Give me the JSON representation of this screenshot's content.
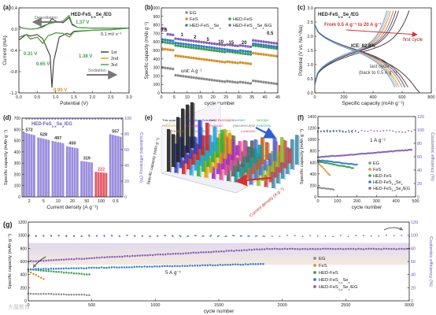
{
  "colors": {
    "EG": "#8c8c8c",
    "FeS": "#d9922b",
    "HED-FeS": "#3aa04a",
    "HED-FeS1-xSex": "#2f7fd0",
    "HED-FeS1-xSex/EG": "#8a5fb8",
    "cycle1": "#3a3a3a",
    "cycle2": "#e0a000",
    "cycle3": "#3aa04a"
  },
  "chart_data": [
    {
      "id": "a",
      "panel": "(a)",
      "type": "line",
      "xlabel": "Potential (V)",
      "ylabel": "Current (mA)",
      "xlim": [
        0,
        3
      ],
      "ylim": [
        -1.2,
        0.4
      ],
      "xticks": [
        0.0,
        0.5,
        1.0,
        1.5,
        2.0,
        2.5,
        3.0
      ],
      "yticks": [
        -1.2,
        -0.8,
        -0.4,
        0.0,
        0.4
      ],
      "legend_title": "HED-FeS1-xSex/EG",
      "annotations": [
        {
          "text": "Desodiation"
        },
        {
          "text": "Sodiation"
        },
        {
          "text": "0.1 mV s⁻¹"
        },
        {
          "text": "1.37 V"
        },
        {
          "text": "0.31 V"
        },
        {
          "text": "0.65 V"
        },
        {
          "text": "1.38 V"
        },
        {
          "text": "0.90 V"
        }
      ],
      "series": [
        {
          "name": "1st",
          "x": [
            0.01,
            0.1,
            0.3,
            0.5,
            0.65,
            0.8,
            0.9,
            1.0,
            1.2,
            1.37,
            1.45,
            1.6,
            2.0,
            2.5,
            3.0,
            2.5,
            2.0,
            1.5,
            1.4,
            1.3,
            1.1,
            0.95,
            0.9,
            0.85,
            0.65,
            0.5,
            0.31,
            0.2,
            0.01
          ],
          "y": [
            0.05,
            0.02,
            0.0,
            0.01,
            0.04,
            0.1,
            0.2,
            0.15,
            0.12,
            0.22,
            0.08,
            0.03,
            0.02,
            0.02,
            0.02,
            -0.01,
            -0.02,
            -0.04,
            -0.1,
            -0.08,
            -0.15,
            -0.6,
            -1.1,
            -0.5,
            -0.18,
            -0.1,
            -0.13,
            -0.1,
            -0.2
          ]
        },
        {
          "name": "2nd",
          "x": [
            0.01,
            0.1,
            0.3,
            0.5,
            0.65,
            0.8,
            1.0,
            1.2,
            1.37,
            1.45,
            1.6,
            2.0,
            2.5,
            3.0,
            2.5,
            2.0,
            1.5,
            1.38,
            1.2,
            1.0,
            0.9,
            0.8,
            0.65,
            0.5,
            0.31,
            0.2,
            0.01
          ],
          "y": [
            0.04,
            0.02,
            0.0,
            0.01,
            0.06,
            0.1,
            0.13,
            0.15,
            0.25,
            0.1,
            0.03,
            0.02,
            0.02,
            0.02,
            -0.01,
            -0.02,
            -0.05,
            -0.14,
            -0.08,
            -0.07,
            -0.1,
            -0.12,
            -0.26,
            -0.15,
            -0.18,
            -0.1,
            -0.15
          ]
        },
        {
          "name": "3rd",
          "x": [
            0.01,
            0.1,
            0.3,
            0.5,
            0.65,
            0.8,
            1.0,
            1.2,
            1.37,
            1.45,
            1.6,
            2.0,
            2.5,
            3.0,
            2.5,
            2.0,
            1.5,
            1.38,
            1.2,
            1.0,
            0.9,
            0.8,
            0.65,
            0.5,
            0.31,
            0.2,
            0.01
          ],
          "y": [
            0.04,
            0.02,
            0.0,
            0.01,
            0.06,
            0.1,
            0.13,
            0.15,
            0.26,
            0.1,
            0.03,
            0.02,
            0.02,
            0.02,
            -0.01,
            -0.02,
            -0.05,
            -0.15,
            -0.08,
            -0.07,
            -0.1,
            -0.12,
            -0.27,
            -0.15,
            -0.19,
            -0.1,
            -0.15
          ]
        }
      ]
    },
    {
      "id": "b",
      "panel": "(b)",
      "type": "scatter",
      "xlabel": "cycle number",
      "ylabel": "Specific capacity (mAh g⁻¹)",
      "xlim": [
        0,
        45
      ],
      "ylim": [
        0,
        1000
      ],
      "xticks": [
        0,
        5,
        10,
        15,
        20,
        25,
        30,
        35,
        40,
        45
      ],
      "yticks": [
        0,
        100,
        200,
        300,
        400,
        500,
        600,
        700,
        800,
        900,
        1000
      ],
      "unit_label": "unit: A g⁻¹",
      "rate_labels": [
        {
          "text": "0.5",
          "x": 1
        },
        {
          "text": "1",
          "x": 8
        },
        {
          "text": "2",
          "x": 13
        },
        {
          "text": "5",
          "x": 18
        },
        {
          "text": "10",
          "x": 23
        },
        {
          "text": "15",
          "x": 27
        },
        {
          "text": "20",
          "x": 32
        },
        {
          "text": "0.5",
          "x": 42
        }
      ],
      "series": [
        {
          "name": "EG",
          "levels": [
            [
              0,
              5,
              300
            ],
            [
              5,
              10,
              210
            ],
            [
              10,
              15,
              190
            ],
            [
              15,
              20,
              170
            ],
            [
              20,
              25,
              150
            ],
            [
              25,
              30,
              140
            ],
            [
              30,
              35,
              130
            ],
            [
              35,
              45,
              145
            ]
          ]
        },
        {
          "name": "FeS",
          "levels": [
            [
              0,
              5,
              520
            ],
            [
              5,
              10,
              440
            ],
            [
              10,
              15,
              420
            ],
            [
              15,
              20,
              400
            ],
            [
              20,
              25,
              380
            ],
            [
              25,
              30,
              370
            ],
            [
              30,
              35,
              360
            ],
            [
              35,
              45,
              470
            ]
          ]
        },
        {
          "name": "HED-FeS",
          "levels": [
            [
              0,
              5,
              600
            ],
            [
              5,
              10,
              560
            ],
            [
              10,
              15,
              540
            ],
            [
              15,
              20,
              520
            ],
            [
              20,
              25,
              500
            ],
            [
              25,
              30,
              490
            ],
            [
              30,
              35,
              470
            ],
            [
              35,
              45,
              560
            ]
          ]
        },
        {
          "name": "HED-FeS1-xSex",
          "levels": [
            [
              0,
              5,
              630
            ],
            [
              5,
              10,
              590
            ],
            [
              10,
              15,
              570
            ],
            [
              15,
              20,
              550
            ],
            [
              20,
              25,
              530
            ],
            [
              25,
              30,
              510
            ],
            [
              30,
              35,
              500
            ],
            [
              35,
              45,
              580
            ]
          ]
        },
        {
          "name": "HED-FeS1-xSex/EG",
          "levels": [
            [
              0,
              5,
              700
            ],
            [
              5,
              10,
              640
            ],
            [
              10,
              15,
              620
            ],
            [
              15,
              20,
              600
            ],
            [
              20,
              25,
              580
            ],
            [
              25,
              30,
              570
            ],
            [
              30,
              35,
              560
            ],
            [
              35,
              45,
              620
            ]
          ]
        }
      ]
    },
    {
      "id": "c",
      "panel": "(c)",
      "type": "line",
      "xlabel": "Specific capacity (mAh g⁻¹)",
      "ylabel": "Potential (V vs. Na⁺/Na)",
      "xlim": [
        0,
        800
      ],
      "ylim": [
        0,
        3.0
      ],
      "xticks": [
        0,
        200,
        400,
        600,
        800
      ],
      "yticks": [
        0.0,
        0.5,
        1.0,
        1.5,
        2.0,
        2.5,
        3.0
      ],
      "legend_title": "HED-FeS1-xSex/EG",
      "annotations": [
        {
          "text": "From 0.5 A g⁻¹ to 20 A g⁻¹"
        },
        {
          "text": "ICE: 82.8%"
        },
        {
          "text": "first cycle"
        },
        {
          "text": "last cycle"
        },
        {
          "text": "(back to 0.5 A g⁻¹)"
        }
      ],
      "curve_capacities": [
        720,
        640,
        620,
        600,
        580,
        570,
        560,
        550,
        620
      ]
    },
    {
      "id": "d",
      "panel": "(d)",
      "type": "bar",
      "xlabel": "Current density (A g⁻¹)",
      "ylabel": "Specific capacity (mAh g⁻¹)",
      "y2label": "Coulombic efficiency (%)",
      "ylim": [
        0,
        700
      ],
      "y2lim": [
        0,
        100
      ],
      "yticks": [
        0,
        100,
        200,
        300,
        400,
        500,
        600,
        700
      ],
      "y2ticks": [
        0,
        20,
        40,
        60,
        80,
        100
      ],
      "legend_title": "HED-FeS1-xSex/EG",
      "categories": [
        "2",
        "5",
        "10",
        "20",
        "50",
        "100",
        "0.5"
      ],
      "values": [
        572,
        528,
        497,
        450,
        319,
        222,
        557
      ],
      "bar_colors": [
        "#8a7ad8",
        "#8a7ad8",
        "#8a7ad8",
        "#8a7ad8",
        "#8a7ad8",
        "#e04050",
        "#8a7ad8"
      ]
    },
    {
      "id": "e",
      "panel": "(e)",
      "type": "bar",
      "xlabel": "Current density (A g⁻¹)",
      "ylabel": "Specific capacity (mAh g⁻¹)",
      "labels": [
        "This work",
        "Sn(Sodium/Selenium cell)-PAN@CNRC/N",
        "FeS2-Fe2O3@HC",
        "Co9S8/C",
        "SiO2@C",
        "FeS2/rGO",
        "FeSe2@C",
        "Fe3Se4/C",
        "(Sn0.5Fe0.5)S2",
        "FeS/CNTs",
        "FeS@NCS",
        "FeSe2/N-C",
        "NiS2@NC",
        "CoSe2/NC",
        "NbS2"
      ]
    },
    {
      "id": "f",
      "panel": "(f)",
      "type": "scatter",
      "xlabel": "cycle number",
      "ylabel": "Specific capacity (mAh g⁻¹)",
      "y2label": "Coulombic efficiency (%)",
      "xlim": [
        0,
        500
      ],
      "ylim": [
        0,
        1400
      ],
      "y2lim": [
        0,
        120
      ],
      "xticks": [
        0,
        100,
        200,
        300,
        400,
        500
      ],
      "yticks": [
        0,
        200,
        400,
        600,
        800,
        1000,
        1200,
        1400
      ],
      "y2ticks": [
        0,
        20,
        40,
        60,
        80,
        100,
        120
      ],
      "annotations": [
        {
          "text": "1 A g⁻¹"
        }
      ],
      "series": [
        {
          "name": "EG",
          "end": 80,
          "start_cap": 160,
          "end_cap": 130
        },
        {
          "name": "FeS",
          "end": 60,
          "start_cap": 600,
          "end_cap": 380
        },
        {
          "name": "HED-FeS",
          "end": 180,
          "start_cap": 620,
          "end_cap": 500
        },
        {
          "name": "HED-FeS1-xSex",
          "end": 200,
          "start_cap": 640,
          "end_cap": 560
        },
        {
          "name": "HED-FeS1-xSex/EG",
          "end": 480,
          "start_cap": 690,
          "end_cap": 820
        }
      ]
    },
    {
      "id": "g",
      "panel": "(g)",
      "type": "scatter",
      "xlabel": "cycle number",
      "ylabel": "Specific capacity (mAh g⁻¹)",
      "y2label": "Coulombic efficiency (%)",
      "xlim": [
        0,
        3000
      ],
      "ylim": [
        0,
        1200
      ],
      "y2lim": [
        0,
        120
      ],
      "xticks": [
        0,
        500,
        1000,
        1500,
        2000,
        2500,
        3000
      ],
      "yticks": [
        0,
        200,
        400,
        600,
        800,
        1000,
        1200
      ],
      "y2ticks": [
        0,
        20,
        40,
        60,
        80,
        100,
        120
      ],
      "annotations": [
        {
          "text": "5 A g⁻¹"
        }
      ],
      "series": [
        {
          "name": "EG",
          "end": 480,
          "start_cap": 110,
          "end_cap": 90
        },
        {
          "name": "FeS",
          "end": 120,
          "start_cap": 450,
          "end_cap": 330
        },
        {
          "name": "HED-FeS",
          "end": 480,
          "start_cap": 480,
          "end_cap": 400
        },
        {
          "name": "HED-FeS1-xSex",
          "end": 1850,
          "start_cap": 480,
          "end_cap": 560
        },
        {
          "name": "HED-FeS1-xSex/EG",
          "end": 3000,
          "start_cap": 600,
          "end_cap": 790
        }
      ]
    }
  ],
  "watermark": "大魔教育"
}
